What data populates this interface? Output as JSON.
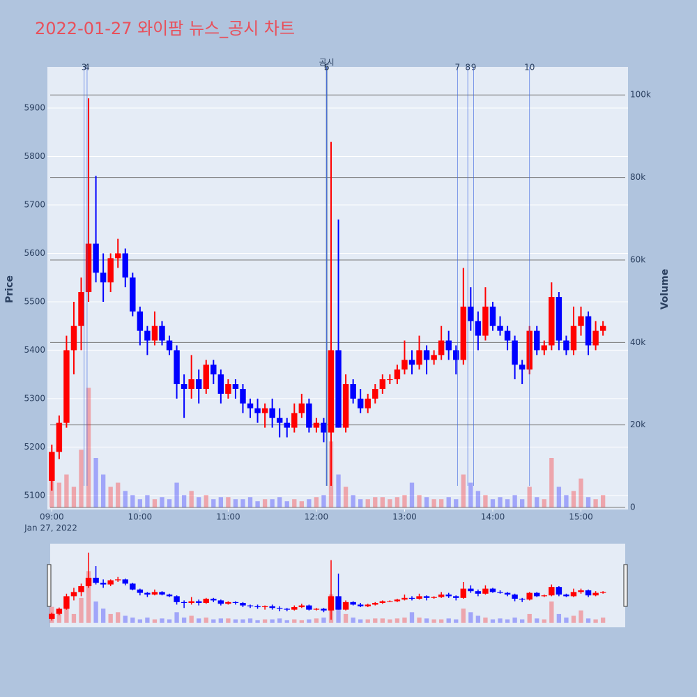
{
  "chart_data": {
    "type": "candlestick",
    "title": "2022-01-27 와이팜 뉴스_공시 차트",
    "y_label": "Price",
    "y2_label": "Volume",
    "date_label": "Jan 27, 2022",
    "up_color": "#ff0000",
    "down_color": "#0000ff",
    "x": [
      "09:00",
      "09:05",
      "09:10",
      "09:15",
      "09:20",
      "09:25",
      "09:30",
      "09:35",
      "09:40",
      "09:45",
      "09:50",
      "09:55",
      "10:00",
      "10:05",
      "10:10",
      "10:15",
      "10:20",
      "10:25",
      "10:30",
      "10:35",
      "10:40",
      "10:45",
      "10:50",
      "10:55",
      "11:00",
      "11:05",
      "11:10",
      "11:15",
      "11:20",
      "11:25",
      "11:30",
      "11:35",
      "11:40",
      "11:45",
      "11:50",
      "11:55",
      "12:00",
      "12:05",
      "12:10",
      "12:15",
      "12:20",
      "12:25",
      "12:30",
      "12:35",
      "12:40",
      "12:45",
      "12:50",
      "12:55",
      "13:00",
      "13:05",
      "13:10",
      "13:15",
      "13:20",
      "13:25",
      "13:30",
      "13:35",
      "13:40",
      "13:45",
      "13:50",
      "13:55",
      "14:00",
      "14:05",
      "14:10",
      "14:15",
      "14:20",
      "14:25",
      "14:30",
      "14:35",
      "14:40",
      "14:45",
      "14:50",
      "14:55",
      "15:00",
      "15:05",
      "15:10",
      "15:15"
    ],
    "open": [
      5130,
      5190,
      5250,
      5400,
      5450,
      5520,
      5620,
      5560,
      5540,
      5590,
      5600,
      5550,
      5480,
      5440,
      5420,
      5450,
      5420,
      5400,
      5330,
      5320,
      5340,
      5320,
      5370,
      5350,
      5310,
      5330,
      5320,
      5290,
      5280,
      5270,
      5280,
      5260,
      5250,
      5240,
      5270,
      5290,
      5240,
      5250,
      5230,
      5400,
      5240,
      5330,
      5300,
      5280,
      5300,
      5320,
      5340,
      5340,
      5360,
      5380,
      5370,
      5400,
      5380,
      5390,
      5420,
      5400,
      5380,
      5490,
      5460,
      5430,
      5490,
      5450,
      5440,
      5420,
      5370,
      5360,
      5440,
      5400,
      5410,
      5510,
      5420,
      5400,
      5450,
      5470,
      5410,
      5440
    ],
    "high": [
      5205,
      5265,
      5430,
      5500,
      5550,
      5920,
      5760,
      5600,
      5600,
      5630,
      5610,
      5560,
      5490,
      5450,
      5480,
      5460,
      5430,
      5410,
      5350,
      5390,
      5360,
      5380,
      5380,
      5360,
      5340,
      5340,
      5330,
      5300,
      5300,
      5290,
      5300,
      5280,
      5260,
      5290,
      5310,
      5300,
      5260,
      5260,
      5830,
      5670,
      5350,
      5340,
      5320,
      5310,
      5330,
      5350,
      5350,
      5370,
      5420,
      5400,
      5430,
      5410,
      5400,
      5450,
      5440,
      5410,
      5570,
      5530,
      5480,
      5530,
      5500,
      5470,
      5450,
      5430,
      5380,
      5450,
      5450,
      5420,
      5540,
      5520,
      5430,
      5490,
      5490,
      5480,
      5460,
      5460
    ],
    "low": [
      5110,
      5175,
      5240,
      5350,
      5400,
      5500,
      5540,
      5500,
      5520,
      5570,
      5530,
      5470,
      5410,
      5390,
      5410,
      5410,
      5390,
      5300,
      5260,
      5300,
      5290,
      5310,
      5330,
      5290,
      5300,
      5300,
      5270,
      5260,
      5250,
      5240,
      5240,
      5220,
      5220,
      5230,
      5260,
      5230,
      5230,
      5210,
      5120,
      5240,
      5230,
      5290,
      5270,
      5270,
      5290,
      5310,
      5330,
      5330,
      5350,
      5350,
      5360,
      5350,
      5370,
      5380,
      5380,
      5350,
      5370,
      5440,
      5400,
      5420,
      5440,
      5430,
      5400,
      5340,
      5330,
      5350,
      5390,
      5390,
      5400,
      5400,
      5390,
      5390,
      5430,
      5390,
      5400,
      5430
    ],
    "close": [
      5190,
      5250,
      5400,
      5450,
      5520,
      5620,
      5560,
      5540,
      5590,
      5600,
      5550,
      5480,
      5440,
      5420,
      5450,
      5420,
      5400,
      5330,
      5320,
      5340,
      5320,
      5370,
      5350,
      5310,
      5330,
      5320,
      5290,
      5280,
      5270,
      5280,
      5260,
      5250,
      5240,
      5270,
      5290,
      5240,
      5250,
      5230,
      5400,
      5240,
      5330,
      5300,
      5280,
      5300,
      5320,
      5340,
      5340,
      5360,
      5380,
      5370,
      5400,
      5380,
      5390,
      5420,
      5400,
      5380,
      5490,
      5460,
      5430,
      5490,
      5450,
      5440,
      5420,
      5370,
      5360,
      5440,
      5400,
      5410,
      5510,
      5420,
      5400,
      5450,
      5470,
      5410,
      5440,
      5450
    ],
    "volume": [
      9000,
      6000,
      8000,
      5000,
      14000,
      29000,
      12000,
      8000,
      5000,
      6000,
      4000,
      3000,
      2000,
      3000,
      2000,
      2500,
      2000,
      6000,
      3000,
      4000,
      2500,
      3000,
      2000,
      2500,
      2500,
      2000,
      2000,
      2500,
      1500,
      2000,
      2000,
      2500,
      1500,
      2000,
      1500,
      2000,
      2500,
      3000,
      16000,
      8000,
      5000,
      3000,
      2000,
      2000,
      2500,
      2500,
      2000,
      2500,
      3000,
      6000,
      3000,
      2500,
      2000,
      2000,
      2500,
      2000,
      8000,
      6000,
      4000,
      3000,
      2000,
      2500,
      2000,
      3000,
      2000,
      5000,
      2500,
      2000,
      12000,
      5000,
      3000,
      4000,
      7000,
      2500,
      2000,
      3000
    ],
    "events": [
      {
        "label": "3",
        "x": "09:22"
      },
      {
        "label": "4",
        "x": "09:24"
      },
      {
        "label": "공시",
        "x": "12:07"
      },
      {
        "label": "5",
        "x": "12:07"
      },
      {
        "label": "6",
        "x": "12:07"
      },
      {
        "label": "7",
        "x": "13:36"
      },
      {
        "label": "8",
        "x": "13:43"
      },
      {
        "label": "9",
        "x": "13:47"
      },
      {
        "label": "10",
        "x": "14:25"
      }
    ],
    "xlim": [
      "08:57",
      "15:32"
    ],
    "xticks": [
      "09:00",
      "10:00",
      "11:00",
      "12:00",
      "13:00",
      "14:00",
      "15:00"
    ],
    "ylim": [
      5071,
      5985
    ],
    "yticks": [
      5100,
      5200,
      5300,
      5400,
      5500,
      5600,
      5700,
      5800,
      5900
    ],
    "y2lim": [
      -500,
      106800
    ],
    "y2ticks": [
      0,
      {
        "value": 20000,
        "label": "20k"
      },
      {
        "value": 40000,
        "label": "40k"
      },
      {
        "value": 60000,
        "label": "60k"
      },
      {
        "value": 80000,
        "label": "80k"
      },
      {
        "value": 100000,
        "label": "100k"
      }
    ],
    "grid": true
  }
}
